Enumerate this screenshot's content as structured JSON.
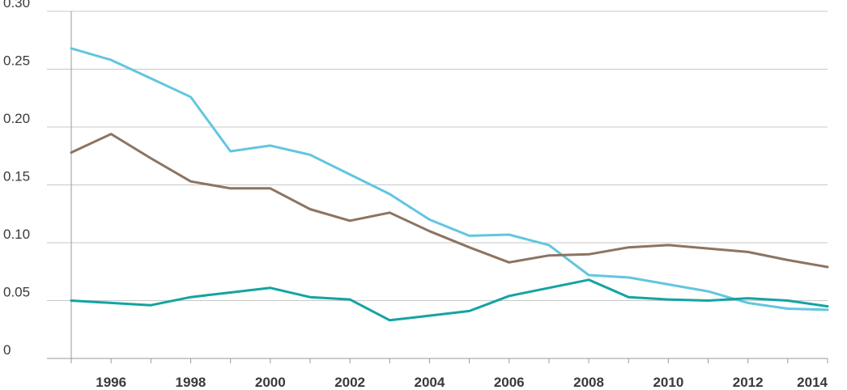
{
  "chart_data": {
    "type": "line",
    "title": "",
    "xlabel": "",
    "ylabel": "",
    "x": [
      1995,
      1996,
      1997,
      1998,
      1999,
      2000,
      2001,
      2002,
      2003,
      2004,
      2005,
      2006,
      2007,
      2008,
      2009,
      2010,
      2011,
      2012,
      2013,
      2014
    ],
    "xlim": [
      1995,
      2014
    ],
    "ylim": [
      0,
      0.3
    ],
    "x_ticks": [
      1996,
      1998,
      2000,
      2002,
      2004,
      2006,
      2008,
      2010,
      2012,
      2014
    ],
    "x_tick_labels": [
      "1996",
      "1998",
      "2000",
      "2002",
      "2004",
      "2006",
      "2008",
      "2010",
      "2012",
      "2014"
    ],
    "y_ticks": [
      0,
      0.05,
      0.1,
      0.15,
      0.2,
      0.25,
      0.3
    ],
    "y_tick_labels": [
      "0",
      "0.05",
      "0.10",
      "0.15",
      "0.20",
      "0.25",
      "0.30"
    ],
    "grid": "horizontal",
    "legend": "none",
    "series": [
      {
        "color": "#62c6e0",
        "values": [
          0.268,
          0.258,
          0.242,
          0.226,
          0.179,
          0.184,
          0.176,
          0.159,
          0.142,
          0.12,
          0.106,
          0.107,
          0.098,
          0.072,
          0.07,
          0.064,
          0.058,
          0.048,
          0.043,
          0.042
        ]
      },
      {
        "color": "#8c7461",
        "values": [
          0.178,
          0.194,
          0.173,
          0.153,
          0.147,
          0.147,
          0.129,
          0.119,
          0.126,
          0.11,
          0.096,
          0.083,
          0.089,
          0.09,
          0.096,
          0.098,
          0.095,
          0.092,
          0.085,
          0.079
        ]
      },
      {
        "color": "#14a3a3",
        "values": [
          0.05,
          0.048,
          0.046,
          0.053,
          0.057,
          0.061,
          0.053,
          0.051,
          0.033,
          0.037,
          0.041,
          0.054,
          0.061,
          0.068,
          0.053,
          0.051,
          0.05,
          0.052,
          0.05,
          0.045
        ]
      }
    ]
  }
}
